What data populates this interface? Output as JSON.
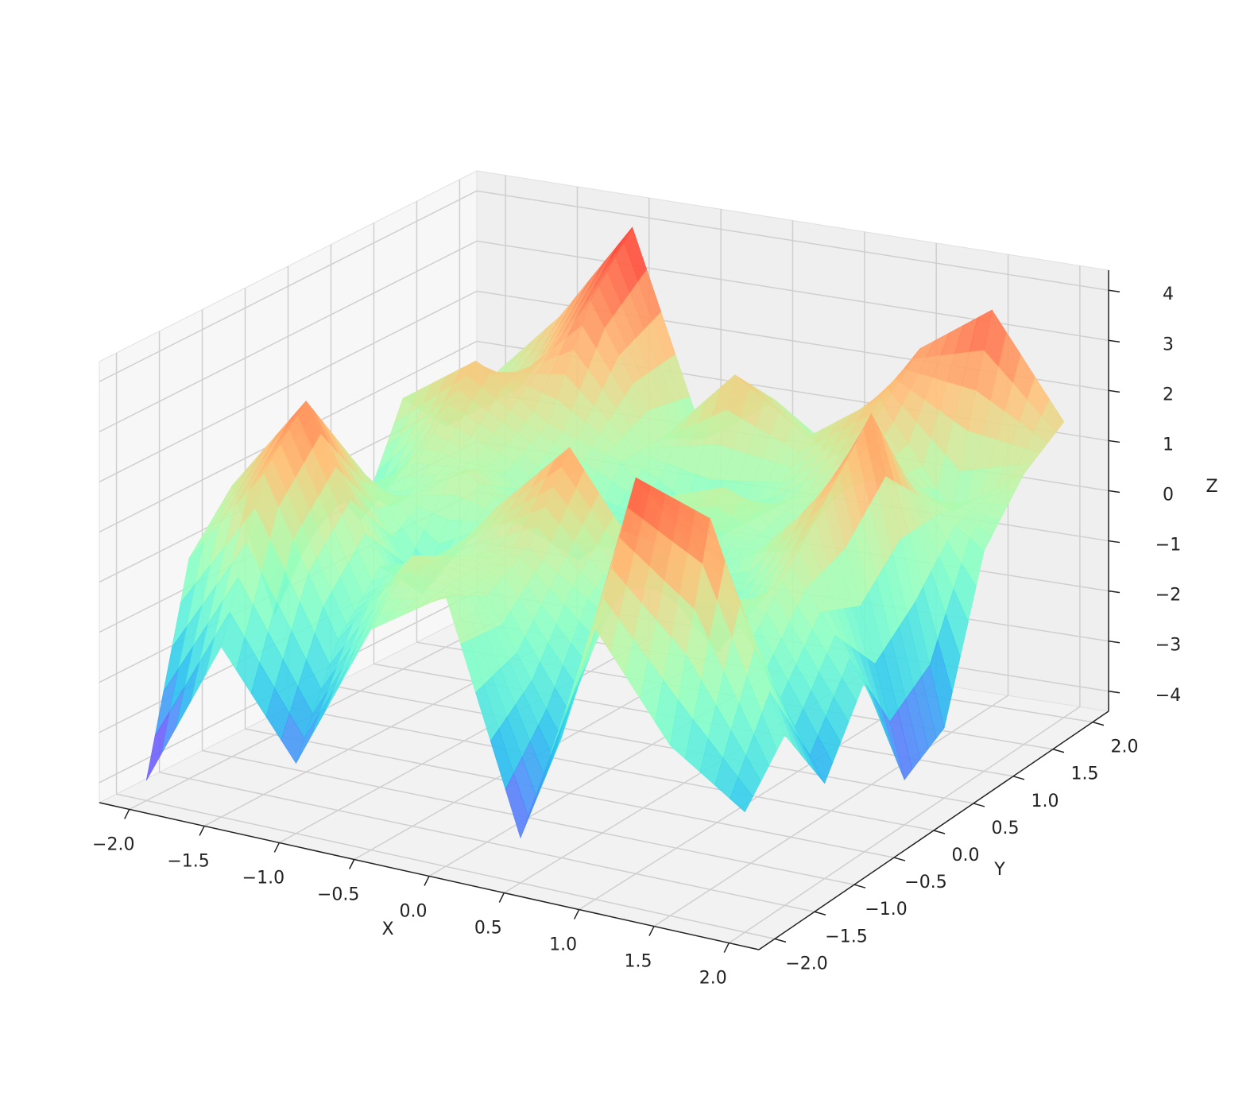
{
  "chart_data": {
    "type": "surface",
    "xlabel": "X",
    "ylabel": "Y",
    "zlabel": "Z",
    "colormap": "rainbow",
    "x": [
      -2,
      -1.5,
      -1,
      -0.5,
      0,
      0.5,
      1,
      1.5,
      2
    ],
    "y": [
      -2,
      -1.5,
      -1,
      -0.5,
      0,
      0.5,
      1,
      1.5,
      2
    ],
    "z": [
      [
        -4,
        -1,
        -3,
        0,
        1,
        -3.5,
        1,
        -1,
        -2
      ],
      [
        0,
        2,
        -1,
        1,
        0.5,
        -2,
        3.5,
        3,
        -1
      ],
      [
        1,
        3,
        0,
        0.5,
        1,
        0,
        2,
        0,
        -2.5
      ],
      [
        -2,
        1.5,
        -1,
        1,
        2.5,
        0.5,
        -1,
        1,
        -1
      ],
      [
        0.5,
        0,
        1,
        0,
        0,
        -0.5,
        0.5,
        2,
        -3.5
      ],
      [
        -1,
        1,
        0.5,
        -1,
        0.5,
        1,
        0,
        3,
        -3
      ],
      [
        1,
        2,
        1,
        0.5,
        -1,
        0,
        1,
        1,
        0
      ],
      [
        0,
        1,
        3,
        0.5,
        2,
        1,
        2,
        0,
        1
      ],
      [
        0.5,
        2,
        4,
        0,
        1,
        0,
        2.5,
        3.5,
        1.5
      ]
    ],
    "xlim": [
      -2.2,
      2.2
    ],
    "ylim": [
      -2.2,
      2.2
    ],
    "zlim": [
      -4.4,
      4.4
    ],
    "xticks": [
      {
        "value": -2,
        "label": "−2.0"
      },
      {
        "value": -1.5,
        "label": "−1.5"
      },
      {
        "value": -1,
        "label": "−1.0"
      },
      {
        "value": -0.5,
        "label": "−0.5"
      },
      {
        "value": 0,
        "label": "0.0"
      },
      0.5,
      {
        "value": 1,
        "label": "1.0"
      },
      1.5,
      {
        "value": 2,
        "label": "2.0"
      }
    ],
    "yticks": [
      {
        "value": -2,
        "label": "−2.0"
      },
      {
        "value": -1.5,
        "label": "−1.5"
      },
      {
        "value": -1,
        "label": "−1.0"
      },
      {
        "value": -0.5,
        "label": "−0.5"
      },
      {
        "value": 0,
        "label": "0.0"
      },
      0.5,
      {
        "value": 1,
        "label": "1.0"
      },
      1.5,
      {
        "value": 2,
        "label": "2.0"
      }
    ],
    "zticks": [
      {
        "value": -4,
        "label": "−4"
      },
      {
        "value": -3,
        "label": "−3"
      },
      {
        "value": -2,
        "label": "−2"
      },
      {
        "value": -1,
        "label": "−1"
      },
      0,
      1,
      2,
      3,
      4
    ],
    "grid": true
  }
}
